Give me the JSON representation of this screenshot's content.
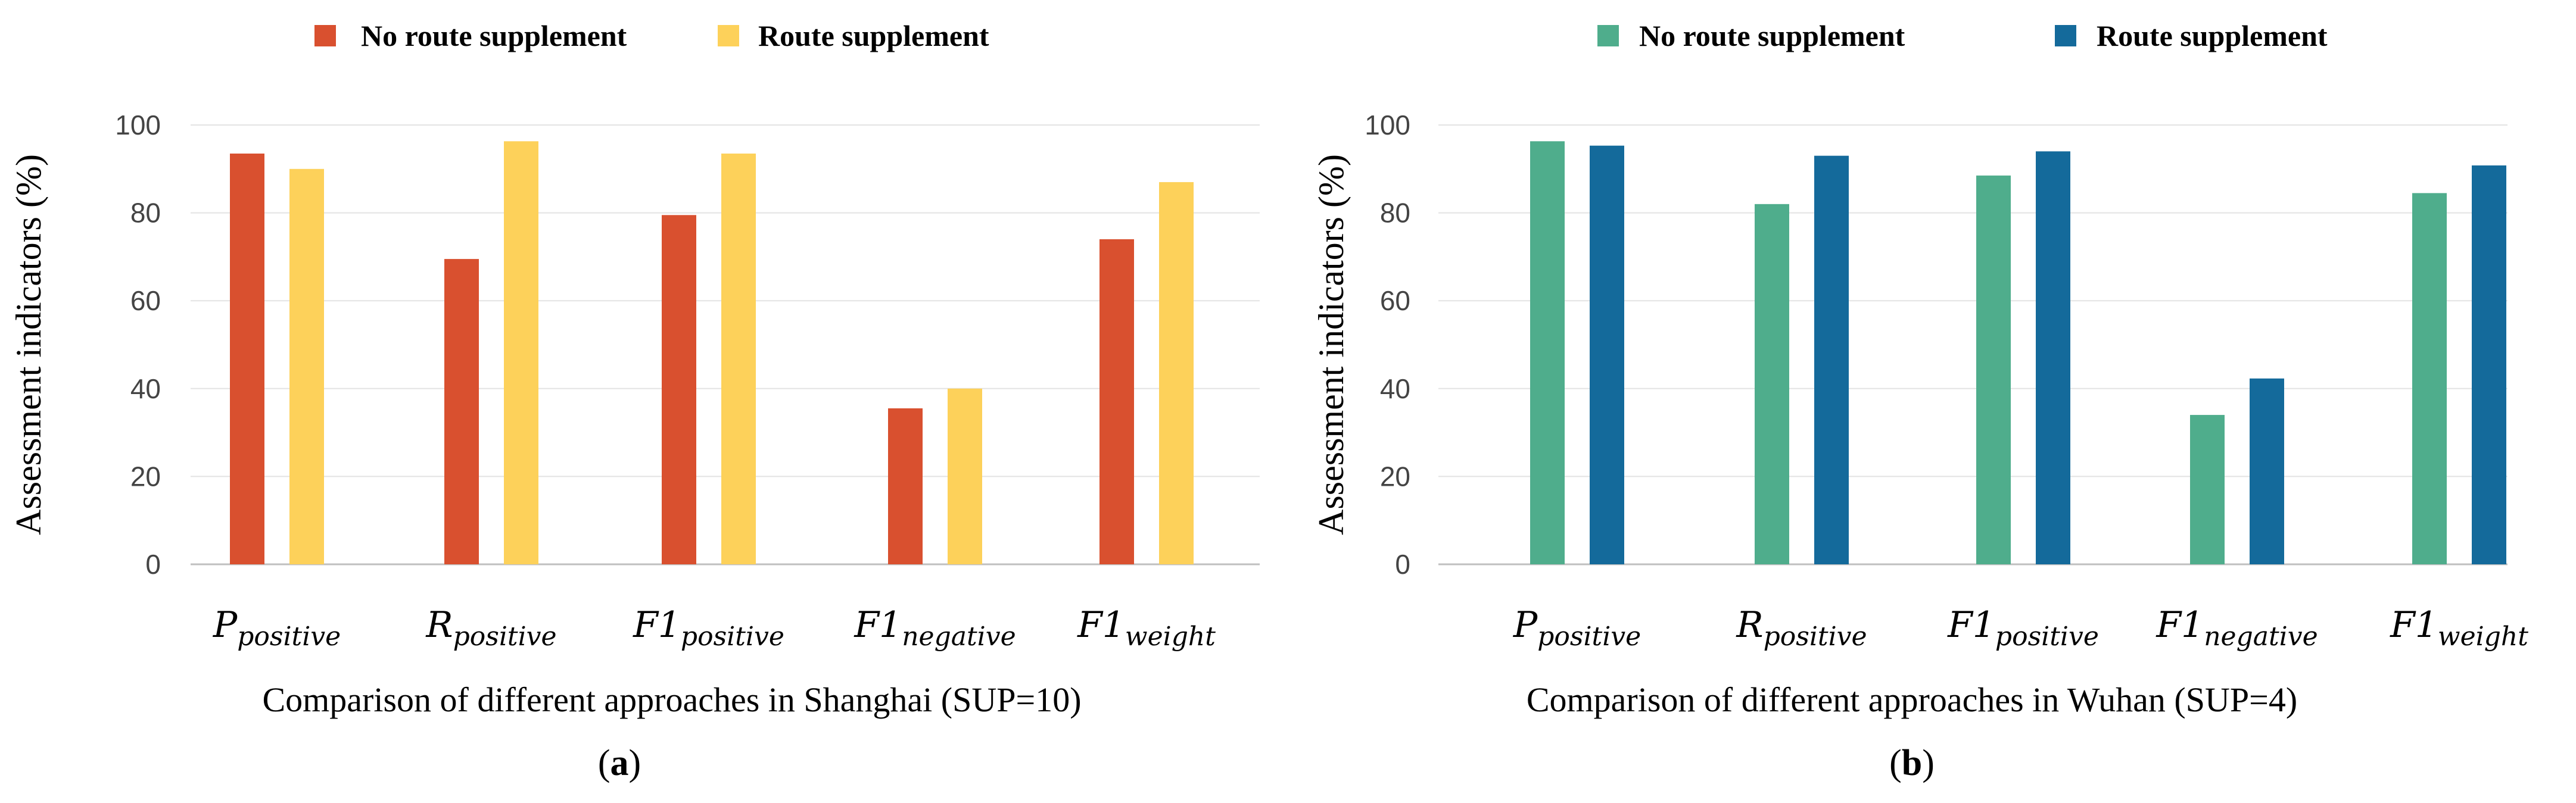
{
  "chart_data": [
    {
      "type": "bar",
      "panel_label": "a",
      "title": "Comparison of different approaches in Shanghai (SUP=10)",
      "ylabel": "Assessment indicators (%)",
      "xlabel": "",
      "ylim": [
        0,
        100
      ],
      "yticks": [
        0,
        20,
        40,
        60,
        80,
        100
      ],
      "grid": true,
      "legend_position": "top",
      "categories": [
        {
          "main": "P",
          "sub": "positive"
        },
        {
          "main": "R",
          "sub": "positive"
        },
        {
          "main": "F1",
          "sub": "positive"
        },
        {
          "main": "F1",
          "sub": "negative"
        },
        {
          "main": "F1",
          "sub": "weight"
        }
      ],
      "series": [
        {
          "name": "No route supplement",
          "color": "#d9502f",
          "values": [
            93.5,
            69.5,
            79.5,
            35.5,
            74
          ]
        },
        {
          "name": "Route supplement",
          "color": "#fdd15a",
          "values": [
            90,
            96.3,
            93.5,
            40,
            87
          ]
        }
      ]
    },
    {
      "type": "bar",
      "panel_label": "b",
      "title": "Comparison of different approaches in Wuhan (SUP=4)",
      "ylabel": "Assessment indicators (%)",
      "xlabel": "",
      "ylim": [
        0,
        100
      ],
      "yticks": [
        0,
        20,
        40,
        60,
        80,
        100
      ],
      "grid": true,
      "legend_position": "top",
      "categories": [
        {
          "main": "P",
          "sub": "positive"
        },
        {
          "main": "R",
          "sub": "positive"
        },
        {
          "main": "F1",
          "sub": "positive"
        },
        {
          "main": "F1",
          "sub": "negative"
        },
        {
          "main": "F1",
          "sub": "weight"
        }
      ],
      "series": [
        {
          "name": "No route supplement",
          "color": "#4fad8c",
          "values": [
            96.3,
            82,
            88.5,
            34,
            84.5
          ]
        },
        {
          "name": "Route supplement",
          "color": "#146a9b",
          "values": [
            95.3,
            93,
            94,
            42.3,
            90.8
          ]
        }
      ]
    }
  ]
}
